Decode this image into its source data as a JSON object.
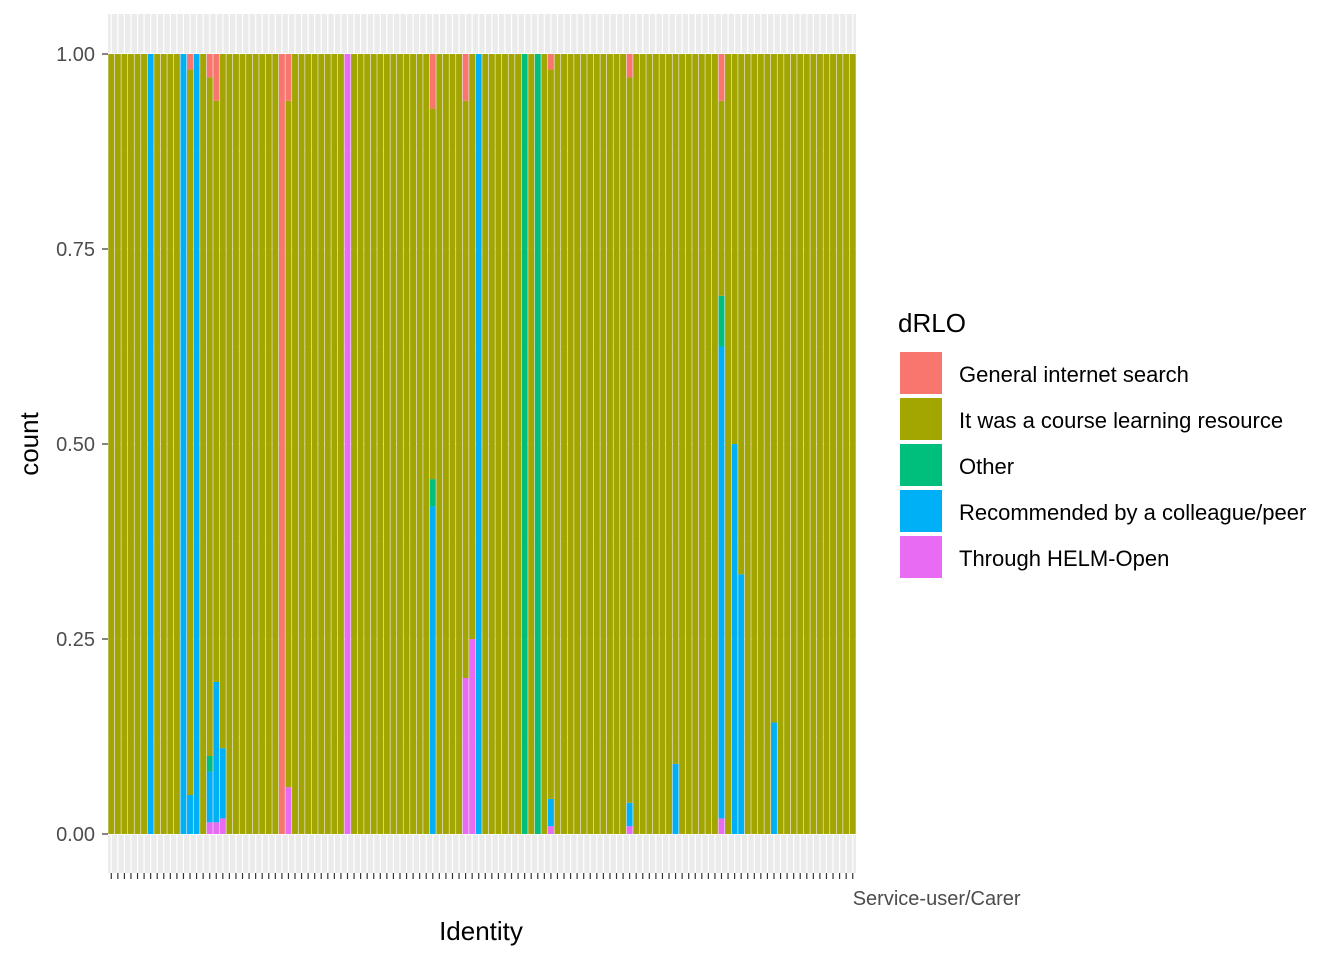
{
  "chart_data": {
    "type": "bar",
    "stacked": true,
    "position": "fill",
    "xlabel": "Identity",
    "ylabel": "count",
    "ylim": [
      0,
      1
    ],
    "yticks": [
      "0.00",
      "0.25",
      "0.50",
      "0.75",
      "1.00"
    ],
    "grid": true,
    "n_categories": 114,
    "last_category_label": "Service-user/Carer",
    "legend": {
      "title": "dRLO",
      "placement": "right",
      "entries": [
        {
          "label": "General internet search",
          "color": "#F8766D"
        },
        {
          "label": "It was a course learning resource",
          "color": "#A3A500"
        },
        {
          "label": "Other",
          "color": "#00BF7D"
        },
        {
          "label": "Recommended by a colleague/peer",
          "color": "#00B0F6"
        },
        {
          "label": "Through HELM-Open",
          "color": "#E76BF3"
        }
      ]
    },
    "series_order": [
      "Through HELM-Open",
      "Recommended by a colleague/peer",
      "Other",
      "It was a course learning resource",
      "General internet search"
    ],
    "bars": [
      {
        "index": 6,
        "segments": {
          "Recommended by a colleague/peer": 1.0
        }
      },
      {
        "index": 11,
        "segments": {
          "Recommended by a colleague/peer": 1.0
        }
      },
      {
        "index": 12,
        "segments": {
          "Recommended by a colleague/peer": 0.05,
          "It was a course learning resource": 0.93,
          "General internet search": 0.02
        }
      },
      {
        "index": 13,
        "segments": {
          "Recommended by a colleague/peer": 1.0
        }
      },
      {
        "index": 15,
        "segments": {
          "Through HELM-Open": 0.015,
          "Recommended by a colleague/peer": 0.065,
          "Other": 0.02,
          "It was a course learning resource": 0.87,
          "General internet search": 0.03
        }
      },
      {
        "index": 16,
        "segments": {
          "Through HELM-Open": 0.015,
          "Recommended by a colleague/peer": 0.18,
          "It was a course learning resource": 0.745,
          "General internet search": 0.06
        }
      },
      {
        "index": 17,
        "segments": {
          "Through HELM-Open": 0.02,
          "Recommended by a colleague/peer": 0.09,
          "It was a course learning resource": 0.89
        }
      },
      {
        "index": 26,
        "segments": {
          "It was a course learning resource": 0.0,
          "General internet search": 1.0
        }
      },
      {
        "index": 27,
        "segments": {
          "Through HELM-Open": 0.06,
          "It was a course learning resource": 0.88,
          "General internet search": 0.06
        }
      },
      {
        "index": 36,
        "segments": {
          "Through HELM-Open": 1.0
        }
      },
      {
        "index": 49,
        "segments": {
          "Recommended by a colleague/peer": 0.42,
          "Other": 0.035,
          "It was a course learning resource": 0.475,
          "General internet search": 0.07
        }
      },
      {
        "index": 54,
        "segments": {
          "Through HELM-Open": 0.2,
          "It was a course learning resource": 0.74,
          "General internet search": 0.06
        }
      },
      {
        "index": 55,
        "segments": {
          "Through HELM-Open": 0.25,
          "It was a course learning resource": 0.75
        }
      },
      {
        "index": 56,
        "segments": {
          "Recommended by a colleague/peer": 1.0
        }
      },
      {
        "index": 63,
        "segments": {
          "Other": 1.0
        }
      },
      {
        "index": 65,
        "segments": {
          "Other": 1.0
        }
      },
      {
        "index": 67,
        "segments": {
          "Through HELM-Open": 0.01,
          "Recommended by a colleague/peer": 0.035,
          "It was a course learning resource": 0.935,
          "General internet search": 0.02
        }
      },
      {
        "index": 79,
        "segments": {
          "Through HELM-Open": 0.01,
          "Recommended by a colleague/peer": 0.03,
          "It was a course learning resource": 0.93,
          "General internet search": 0.03
        }
      },
      {
        "index": 86,
        "segments": {
          "Recommended by a colleague/peer": 0.09,
          "It was a course learning resource": 0.91
        }
      },
      {
        "index": 93,
        "segments": {
          "Through HELM-Open": 0.02,
          "Recommended by a colleague/peer": 0.605,
          "Other": 0.065,
          "It was a course learning resource": 0.25,
          "General internet search": 0.06
        }
      },
      {
        "index": 95,
        "segments": {
          "Recommended by a colleague/peer": 0.5,
          "It was a course learning resource": 0.5
        }
      },
      {
        "index": 96,
        "segments": {
          "Recommended by a colleague/peer": 0.333,
          "It was a course learning resource": 0.667
        }
      },
      {
        "index": 101,
        "segments": {
          "Recommended by a colleague/peer": 0.143,
          "It was a course learning resource": 0.857
        }
      }
    ],
    "default_bar": {
      "It was a course learning resource": 1.0
    }
  }
}
